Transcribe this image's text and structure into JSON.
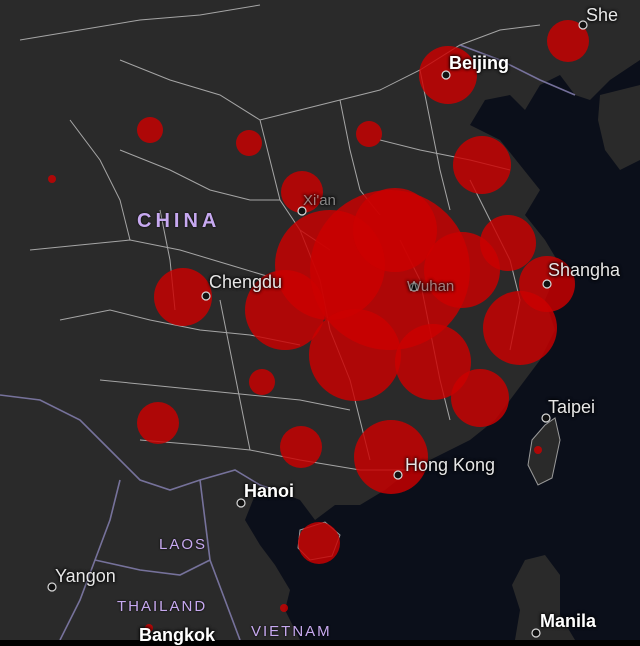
{
  "map": {
    "colors": {
      "land": "#2a2a2a",
      "water": "#0b0f1a",
      "province_border": "#cfcfcf",
      "country_border": "#7f7aa8",
      "bubble": "#cc0000",
      "city_dot": "#111111"
    },
    "labels": {
      "china": "CHINA",
      "laos": "LAOS",
      "thailand": "THAILAND",
      "vietnam": "VIETNAM",
      "beijing": "Beijing",
      "xian": "Xi'an",
      "chengdu": "Chengdu",
      "wuhan": "Wuhan",
      "shanghai": "Shangha",
      "taipei": "Taipei",
      "hong_kong": "Hong Kong",
      "hanoi": "Hanoi",
      "yangon": "Yangon",
      "manila": "Manila",
      "bangkok": "Bangkok",
      "shenyang": "She"
    }
  }
}
